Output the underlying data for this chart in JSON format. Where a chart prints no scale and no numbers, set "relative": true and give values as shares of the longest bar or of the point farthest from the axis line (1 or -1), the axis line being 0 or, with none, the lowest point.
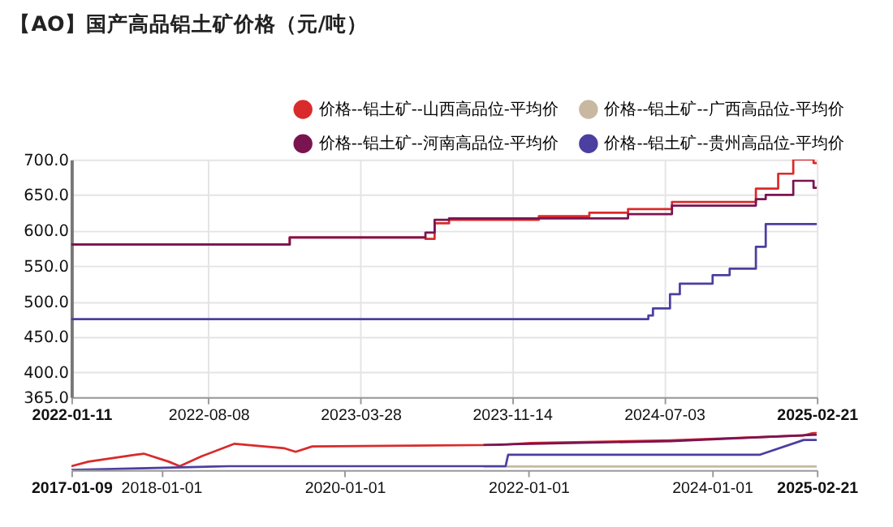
{
  "chart_data": [
    {
      "type": "step",
      "title": "【AO】国产高品铝土矿价格（元/吨）",
      "legend": "top right",
      "grid": true,
      "xlim": [
        "2022-01-11",
        "2025-02-21"
      ],
      "xticks": [
        "2022-01-11",
        "2022-08-08",
        "2023-03-28",
        "2023-11-14",
        "2024-07-03",
        "2025-02-21"
      ],
      "ylim": [
        365,
        700
      ],
      "yticks": [
        {
          "value": 365,
          "label": "365.0"
        },
        {
          "value": 400,
          "label": "400.0"
        },
        {
          "value": 450,
          "label": "450.0"
        },
        {
          "value": 500,
          "label": "500.0"
        },
        {
          "value": 550,
          "label": "550.0"
        },
        {
          "value": 600,
          "label": "600.0"
        },
        {
          "value": 650,
          "label": "650.0"
        },
        {
          "value": 700,
          "label": "700.0"
        }
      ],
      "series": [
        {
          "name": "价格--铝土矿--山西高品位-平均价",
          "color": "#d92b2b",
          "x": [
            "2022-01-11",
            "2022-12-10",
            "2023-07-05",
            "2023-07-19",
            "2023-08-10",
            "2023-12-25",
            "2024-03-11",
            "2024-05-09",
            "2024-07-15",
            "2024-11-20",
            "2024-12-24",
            "2025-01-16",
            "2025-02-16",
            "2025-02-21"
          ],
          "values": [
            580,
            590,
            588,
            610,
            615,
            620,
            625,
            630,
            640,
            659,
            680,
            700,
            695,
            695
          ]
        },
        {
          "name": "价格--铝土矿--广西高品位-平均价",
          "color": "#c8b8a2"
        },
        {
          "name": "价格--铝土矿--河南高品位-平均价",
          "color": "#7a1450",
          "x": [
            "2022-01-11",
            "2022-12-10",
            "2023-07-05",
            "2023-07-19",
            "2023-08-10",
            "2024-05-09",
            "2024-07-15",
            "2024-11-20",
            "2024-12-05",
            "2025-01-16",
            "2025-02-16",
            "2025-02-21"
          ],
          "values": [
            580,
            590,
            597,
            615,
            617,
            623,
            635,
            644,
            650,
            670,
            660,
            660
          ]
        },
        {
          "name": "价格--铝土矿--贵州高品位-平均价",
          "color": "#4b3fa0",
          "x": [
            "2022-01-11",
            "2024-06-09",
            "2024-06-16",
            "2024-07-12",
            "2024-07-27",
            "2024-09-15",
            "2024-10-11",
            "2024-11-20",
            "2024-12-05",
            "2025-02-21"
          ],
          "values": [
            475,
            480,
            490,
            510,
            525,
            537,
            546,
            577,
            609,
            609
          ]
        }
      ]
    },
    {
      "type": "line",
      "relative": true,
      "tick_labels": "x",
      "xlim": [
        "2017-01-09",
        "2025-02-21"
      ],
      "xticks": [
        "2017-01-09",
        "2018-01-01",
        "2020-01-01",
        "2022-01-01",
        "2024-01-01",
        "2025-02-21"
      ],
      "series": [
        {
          "color": "#d92b2b",
          "x": [
            "2017-01-09",
            "2017-03-18",
            "2017-09-21",
            "2017-10-24",
            "2018-01-31",
            "2018-03-16",
            "2018-06-11",
            "2018-10-20",
            "2019-05-07",
            "2019-06-20",
            "2019-08-25",
            "2021-09-10",
            "2022-01-11",
            "2023-07-22",
            "2024-12-31",
            "2025-02-21"
          ],
          "values": [
            0.1,
            0.22,
            0.4,
            0.43,
            0.22,
            0.1,
            0.36,
            0.69,
            0.57,
            0.48,
            0.62,
            0.66,
            0.71,
            0.78,
            0.91,
            1.0
          ]
        },
        {
          "color": "#c8b8a2",
          "x": [
            "2021-07-06",
            "2025-02-21"
          ],
          "values": [
            0.09,
            0.09
          ]
        },
        {
          "color": "#7a1450",
          "x": [
            "2021-07-06",
            "2022-01-11",
            "2023-07-22",
            "2025-02-21"
          ],
          "values": [
            0.66,
            0.69,
            0.76,
            0.93
          ]
        },
        {
          "color": "#4b3fa0",
          "x": [
            "2017-01-09",
            "2018-09-28",
            "2021-10-02",
            "2021-10-12",
            "2024-07-08",
            "2024-12-31",
            "2025-02-21"
          ],
          "values": [
            0.0,
            0.1,
            0.1,
            0.4,
            0.4,
            0.79,
            0.79
          ]
        }
      ]
    }
  ]
}
